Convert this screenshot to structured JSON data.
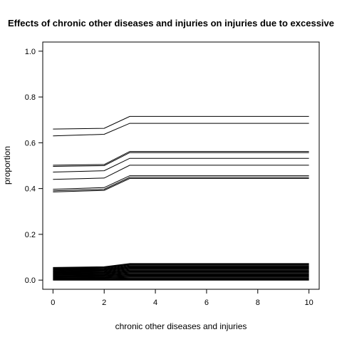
{
  "chart_data": {
    "type": "line",
    "title": "Effects of chronic other diseases and injuries on injuries due to excessive",
    "xlabel": "chronic other diseases and injuries",
    "ylabel": "proportion",
    "xlim": [
      -0.4,
      10.4
    ],
    "ylim": [
      -0.04,
      1.04
    ],
    "x_ticks": [
      "0",
      "2",
      "4",
      "6",
      "8",
      "10"
    ],
    "y_ticks": [
      "0.0",
      "0.2",
      "0.4",
      "0.6",
      "0.8",
      "1.0"
    ],
    "grid": false,
    "legend": "none",
    "x": [
      0,
      2,
      3,
      10
    ],
    "series_upper": [
      [
        0.66,
        0.663,
        0.715,
        0.715
      ],
      [
        0.63,
        0.637,
        0.685,
        0.685
      ],
      [
        0.502,
        0.505,
        0.562,
        0.562
      ],
      [
        0.497,
        0.5,
        0.557,
        0.557
      ],
      [
        0.472,
        0.478,
        0.532,
        0.532
      ],
      [
        0.44,
        0.446,
        0.502,
        0.502
      ],
      [
        0.397,
        0.404,
        0.456,
        0.456
      ],
      [
        0.39,
        0.397,
        0.449,
        0.449
      ],
      [
        0.385,
        0.392,
        0.444,
        0.444
      ]
    ],
    "band_top": [
      0.055,
      0.058,
      0.072,
      0.072
    ],
    "band_line_count": 22
  }
}
